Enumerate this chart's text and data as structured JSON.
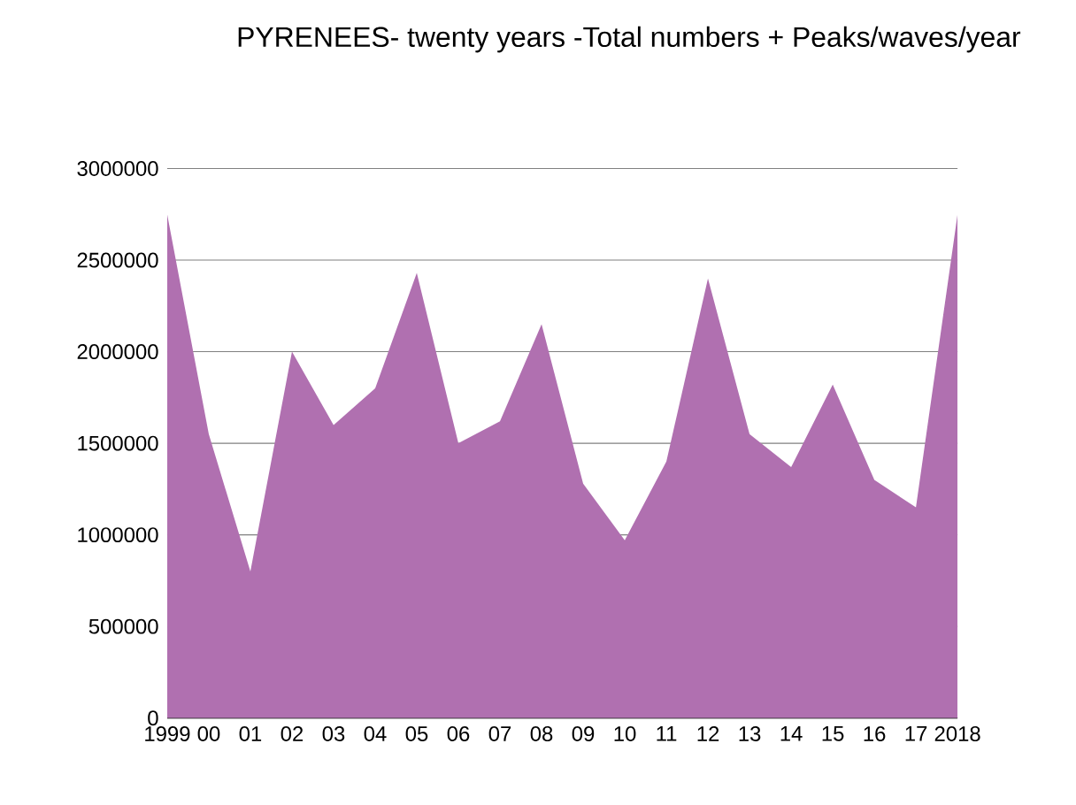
{
  "chart_data": {
    "type": "area",
    "title": "PYRENEES- twenty years -Total numbers + Peaks/waves/year",
    "categories": [
      "1999",
      "00",
      "01",
      "02",
      "03",
      "04",
      "05",
      "06",
      "07",
      "08",
      "09",
      "10",
      "11",
      "12",
      "13",
      "14",
      "15",
      "16",
      "17",
      "2018"
    ],
    "values": [
      2750000,
      1550000,
      800000,
      2000000,
      1600000,
      1800000,
      2430000,
      1500000,
      1620000,
      2150000,
      1280000,
      970000,
      1400000,
      2400000,
      1550000,
      1370000,
      1820000,
      1300000,
      1150000,
      2750000
    ],
    "color": "#b070b0",
    "ylim": [
      0,
      3000000
    ],
    "yticks": [
      0,
      500000,
      1000000,
      1500000,
      2000000,
      2500000,
      3000000
    ],
    "grid": "y"
  }
}
